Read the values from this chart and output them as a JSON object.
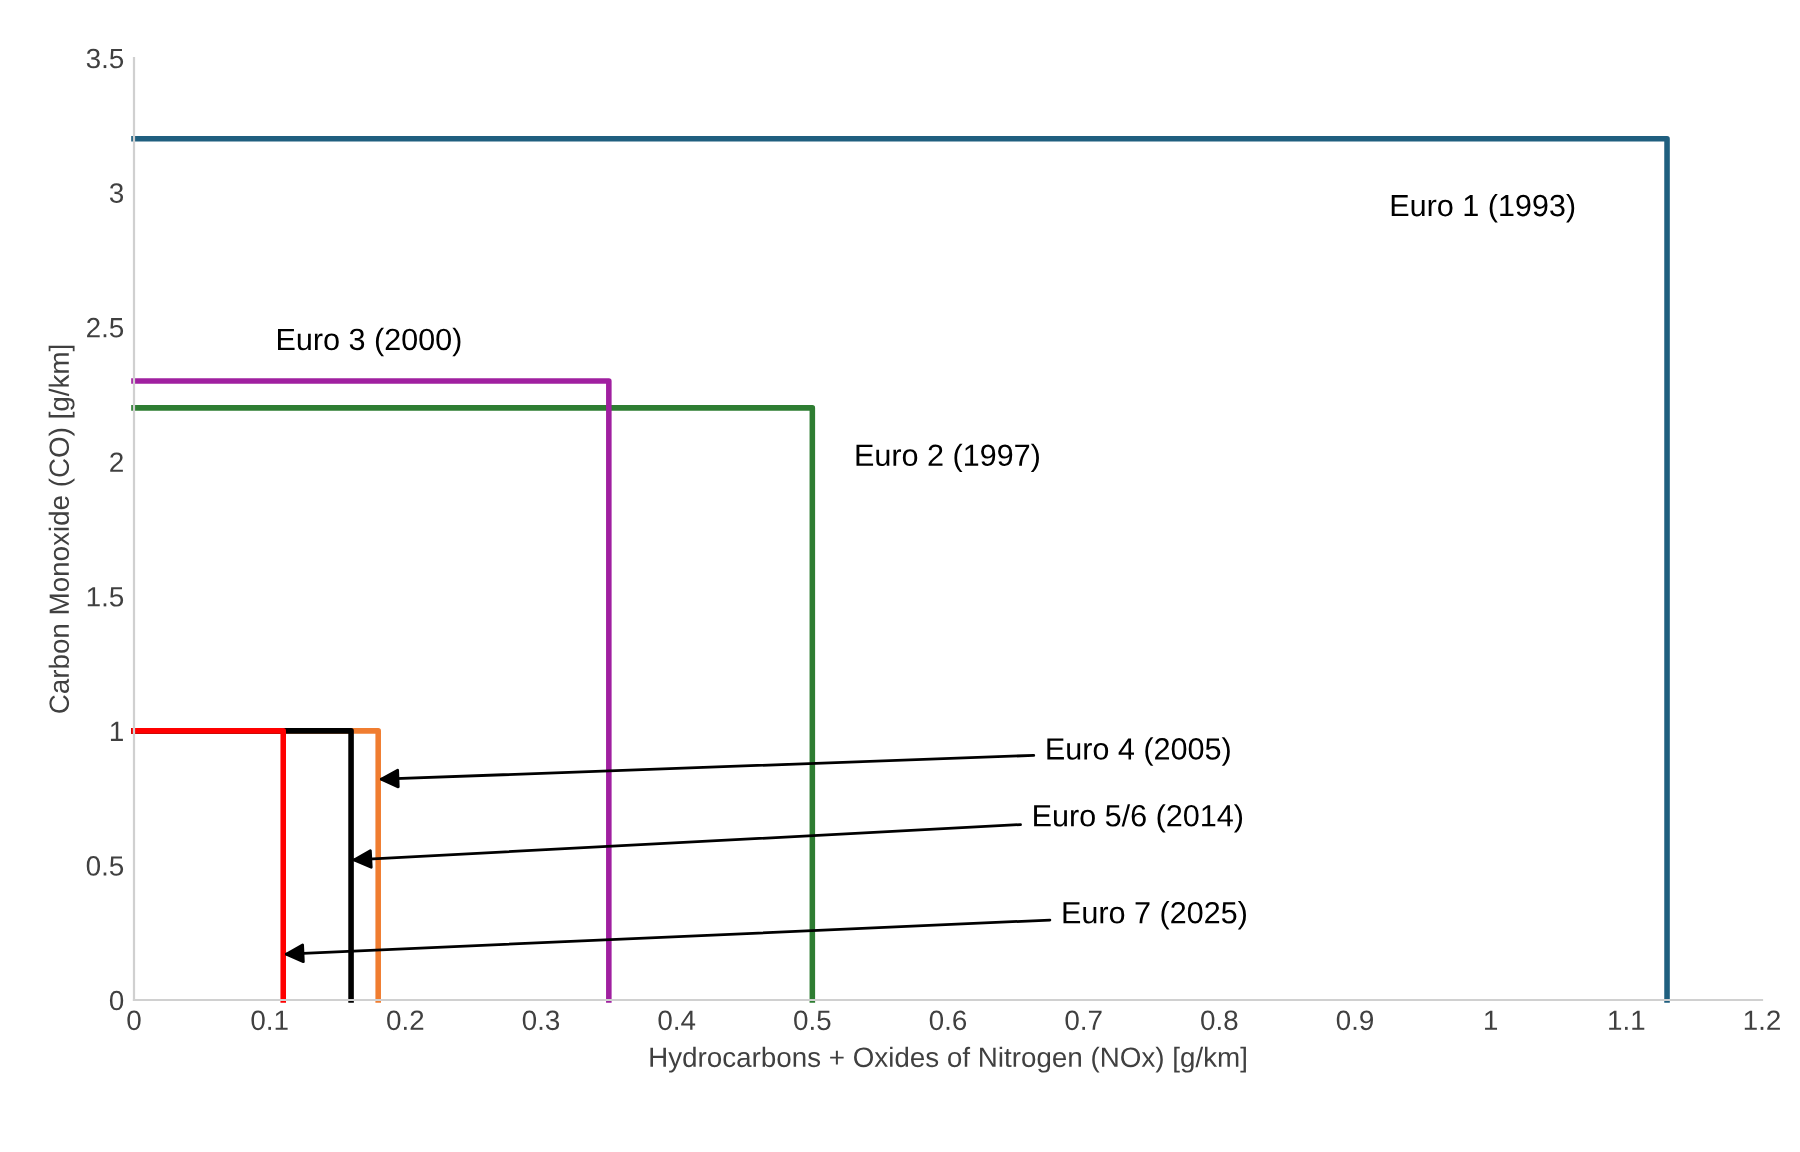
{
  "chart_data": {
    "type": "line",
    "xlabel": "Hydrocarbons + Oxides of Nitrogen (NOx) [g/km]",
    "ylabel": "Carbon Monoxide (CO) [g/km]",
    "xlim": [
      0,
      1.2
    ],
    "xticks": [
      0,
      0.1,
      0.2,
      0.3,
      0.4,
      0.5,
      0.6,
      0.7,
      0.8,
      0.9,
      1,
      1.1,
      1.2
    ],
    "ylim": [
      0,
      3.5
    ],
    "yticks": [
      0,
      0.5,
      1,
      1.5,
      2,
      2.5,
      3,
      3.5
    ],
    "grid": false,
    "marker": "none",
    "line_style": "solid",
    "series": [
      {
        "name": "Euro 1 (1993)",
        "color": "#1f5f7f",
        "x": [
          0,
          1.13,
          1.13
        ],
        "values": [
          3.2,
          3.2,
          0
        ]
      },
      {
        "name": "Euro 2 (1997)",
        "color": "#2e7d32",
        "x": [
          0,
          0.5,
          0.5
        ],
        "values": [
          2.2,
          2.2,
          0
        ]
      },
      {
        "name": "Euro 3 (2000)",
        "color": "#a020a0",
        "x": [
          0,
          0.35,
          0.35
        ],
        "values": [
          2.3,
          2.3,
          0
        ]
      },
      {
        "color": "#f07d30",
        "x": [
          0,
          0.18,
          0.18
        ],
        "values": [
          1,
          1,
          0
        ]
      },
      {
        "color": "#000000",
        "x": [
          0,
          0.16,
          0.16
        ],
        "values": [
          1,
          1,
          0
        ]
      },
      {
        "color": "#ff0000",
        "x": [
          0,
          0.11,
          0.11
        ],
        "values": [
          1,
          1,
          0
        ]
      }
    ],
    "annotations": [
      {
        "text": "Euro 4 (2005)",
        "x": 0.18,
        "y": 0.82
      },
      {
        "text": "Euro 5/6 (2014)",
        "x": 0.16,
        "y": 0.52
      },
      {
        "text": "Euro 7 (2025)",
        "x": 0.11,
        "y": 0.17
      }
    ]
  }
}
